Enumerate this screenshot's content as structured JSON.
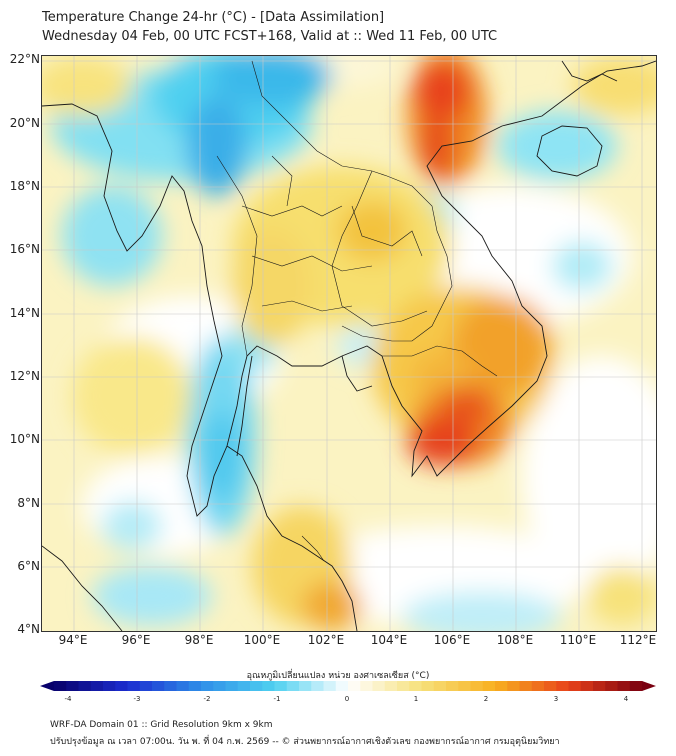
{
  "title_line1": "Temperature Change 24-hr (°C) - [Data Assimilation]",
  "title_line2": "Wednesday 04 Feb, 00 UTC FCST+168, Valid at :: Wed 11 Feb, 00 UTC",
  "lat_labels": [
    "22°N",
    "20°N",
    "18°N",
    "16°N",
    "14°N",
    "12°N",
    "10°N",
    "8°N",
    "6°N",
    "4°N"
  ],
  "lon_labels": [
    "94°E",
    "96°E",
    "98°E",
    "100°E",
    "102°E",
    "104°E",
    "106°E",
    "108°E",
    "110°E",
    "112°E"
  ],
  "colorbar": {
    "label": "อุณหภูมิเปลี่ยนแปลง หน่วย องศาเซลเซียส (°C)",
    "ticks": [
      "-4",
      "-3",
      "-2",
      "-1",
      "0",
      "1",
      "2",
      "3",
      "4"
    ],
    "range": [
      -4,
      4
    ],
    "colors": [
      "#08006b",
      "#1c2dd0",
      "#2f8ee8",
      "#4fd0f0",
      "#ffffff",
      "#f6e07a",
      "#f8b020",
      "#e8421a",
      "#7a0010"
    ]
  },
  "footer_line1": "WRF-DA Domain 01 :: Grid Resolution 9km x 9km",
  "footer_line2": "ปรับปรุงข้อมูล ณ เวลา 07:00น. วัน พ. ที่ 04 ก.พ. 2569 -- © ส่วนพยากรณ์อากาศเชิงตัวเลข กองพยากรณ์อากาศ กรมอุตุนิยมวิทยา"
}
